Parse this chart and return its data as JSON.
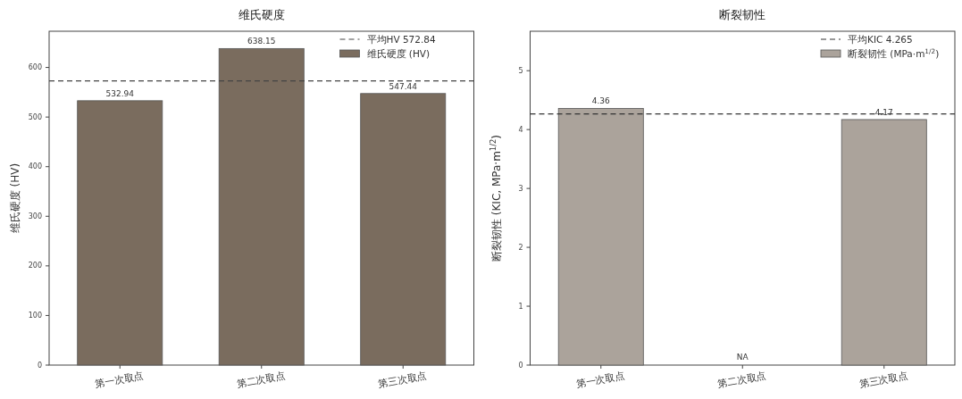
{
  "chart_data": [
    {
      "type": "bar",
      "title": "维氏硬度",
      "ylabel": "维氏硬度 (HV)",
      "categories": [
        "第一次取点",
        "第二次取点",
        "第三次取点"
      ],
      "series": [
        {
          "name": "维氏硬度 (HV)",
          "color": "#7a6c5e",
          "values": [
            532.94,
            638.15,
            547.44
          ],
          "value_labels": [
            "532.94",
            "638.15",
            "547.44"
          ]
        }
      ],
      "ylim": [
        0,
        673
      ],
      "yticks": [
        0,
        100,
        200,
        300,
        400,
        500,
        600
      ],
      "ref_lines": [
        {
          "axis": "y",
          "value": 572.84,
          "label": "平均HV 572.84",
          "color": "#444444",
          "line_style": "dashed"
        }
      ],
      "legend": "top right"
    },
    {
      "type": "bar",
      "title": "断裂韧性",
      "ylabel": "断裂韧性 (KIC, MPa·m$^{1/2}$)",
      "categories": [
        "第一次取点",
        "第二次取点",
        "第三次取点"
      ],
      "series": [
        {
          "name": "断裂韧性 (MPa·m$^{1/2}$)",
          "color": "#aba39b",
          "values": [
            4.36,
            null,
            4.17
          ],
          "value_labels": [
            "4.36",
            "NA",
            "4.17"
          ]
        }
      ],
      "ylim": [
        0,
        5.67
      ],
      "yticks": [
        0,
        1,
        2,
        3,
        4,
        5
      ],
      "ref_lines": [
        {
          "axis": "y",
          "value": 4.265,
          "label": "平均KIC 4.265",
          "color": "#333333",
          "line_style": "dashed"
        }
      ],
      "legend": "top right"
    }
  ]
}
